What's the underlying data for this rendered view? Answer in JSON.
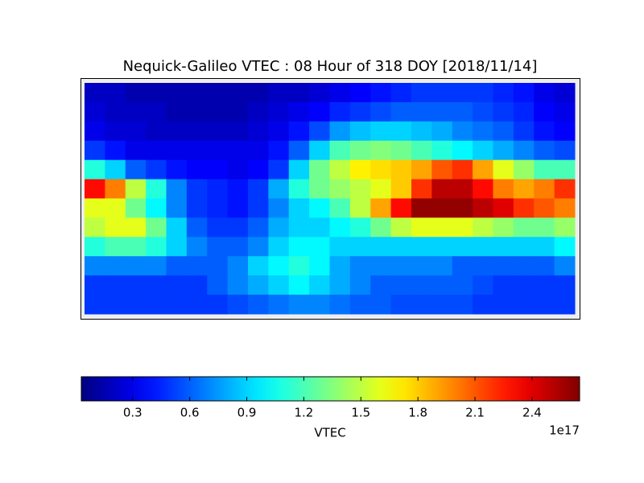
{
  "chart_data": {
    "type": "heatmap",
    "title": "Nequick-Galileo VTEC : 08 Hour of 318 DOY [2018/11/14]",
    "colormap": "jet",
    "clim": [
      0.03,
      2.65
    ],
    "colorbar": {
      "ticks": [
        0.3,
        0.6,
        0.9,
        1.2,
        1.5,
        1.8,
        2.1,
        2.4
      ],
      "label": "VTEC",
      "offset_label": "1e17"
    },
    "values": [
      [
        0.2,
        0.2,
        0.15,
        0.15,
        0.15,
        0.15,
        0.15,
        0.15,
        0.15,
        0.2,
        0.2,
        0.25,
        0.3,
        0.35,
        0.4,
        0.45,
        0.5,
        0.5,
        0.5,
        0.5,
        0.45,
        0.4,
        0.3,
        0.25
      ],
      [
        0.25,
        0.2,
        0.2,
        0.2,
        0.15,
        0.15,
        0.15,
        0.15,
        0.2,
        0.25,
        0.3,
        0.35,
        0.45,
        0.5,
        0.55,
        0.6,
        0.6,
        0.6,
        0.6,
        0.55,
        0.5,
        0.45,
        0.35,
        0.3
      ],
      [
        0.3,
        0.25,
        0.25,
        0.2,
        0.2,
        0.2,
        0.2,
        0.2,
        0.25,
        0.3,
        0.4,
        0.55,
        0.75,
        0.85,
        0.9,
        0.9,
        0.85,
        0.8,
        0.7,
        0.65,
        0.6,
        0.5,
        0.4,
        0.35
      ],
      [
        0.5,
        0.4,
        0.3,
        0.3,
        0.3,
        0.3,
        0.3,
        0.3,
        0.3,
        0.4,
        0.6,
        0.9,
        1.2,
        1.3,
        1.35,
        1.3,
        1.2,
        1.1,
        1.0,
        0.9,
        0.8,
        0.7,
        0.6,
        0.55
      ],
      [
        1.1,
        0.9,
        0.6,
        0.5,
        0.4,
        0.35,
        0.35,
        0.3,
        0.35,
        0.5,
        0.9,
        1.3,
        1.5,
        1.7,
        1.75,
        1.8,
        1.9,
        2.1,
        2.2,
        1.9,
        1.6,
        1.4,
        1.2,
        1.2
      ],
      [
        2.3,
        2.0,
        1.5,
        1.1,
        0.7,
        0.5,
        0.45,
        0.4,
        0.5,
        0.8,
        1.1,
        1.3,
        1.4,
        1.5,
        1.6,
        1.8,
        2.2,
        2.5,
        2.5,
        2.3,
        2.0,
        1.9,
        2.0,
        2.2
      ],
      [
        1.6,
        1.6,
        1.3,
        1.0,
        0.7,
        0.5,
        0.45,
        0.4,
        0.5,
        0.7,
        0.9,
        1.0,
        1.2,
        1.5,
        1.9,
        2.3,
        2.6,
        2.6,
        2.6,
        2.5,
        2.4,
        2.2,
        2.1,
        2.0
      ],
      [
        1.5,
        1.6,
        1.6,
        1.3,
        0.9,
        0.6,
        0.5,
        0.5,
        0.6,
        0.8,
        0.9,
        0.9,
        1.0,
        1.1,
        1.3,
        1.5,
        1.6,
        1.6,
        1.6,
        1.5,
        1.4,
        1.3,
        1.3,
        1.4
      ],
      [
        1.1,
        1.2,
        1.2,
        1.1,
        0.9,
        0.7,
        0.6,
        0.6,
        0.7,
        0.9,
        1.0,
        1.0,
        0.9,
        0.9,
        0.9,
        0.9,
        0.9,
        0.9,
        0.9,
        0.9,
        0.9,
        0.9,
        0.9,
        1.0
      ],
      [
        0.7,
        0.7,
        0.7,
        0.7,
        0.6,
        0.6,
        0.6,
        0.7,
        0.9,
        1.0,
        1.1,
        1.0,
        0.8,
        0.7,
        0.7,
        0.7,
        0.7,
        0.7,
        0.6,
        0.6,
        0.6,
        0.6,
        0.6,
        0.7
      ],
      [
        0.5,
        0.5,
        0.5,
        0.5,
        0.5,
        0.5,
        0.6,
        0.7,
        0.8,
        0.9,
        1.0,
        0.9,
        0.8,
        0.7,
        0.6,
        0.6,
        0.6,
        0.6,
        0.6,
        0.55,
        0.5,
        0.5,
        0.5,
        0.5
      ],
      [
        0.5,
        0.5,
        0.5,
        0.5,
        0.5,
        0.5,
        0.5,
        0.55,
        0.6,
        0.65,
        0.7,
        0.7,
        0.65,
        0.6,
        0.6,
        0.55,
        0.55,
        0.55,
        0.55,
        0.5,
        0.5,
        0.5,
        0.5,
        0.5
      ]
    ]
  }
}
